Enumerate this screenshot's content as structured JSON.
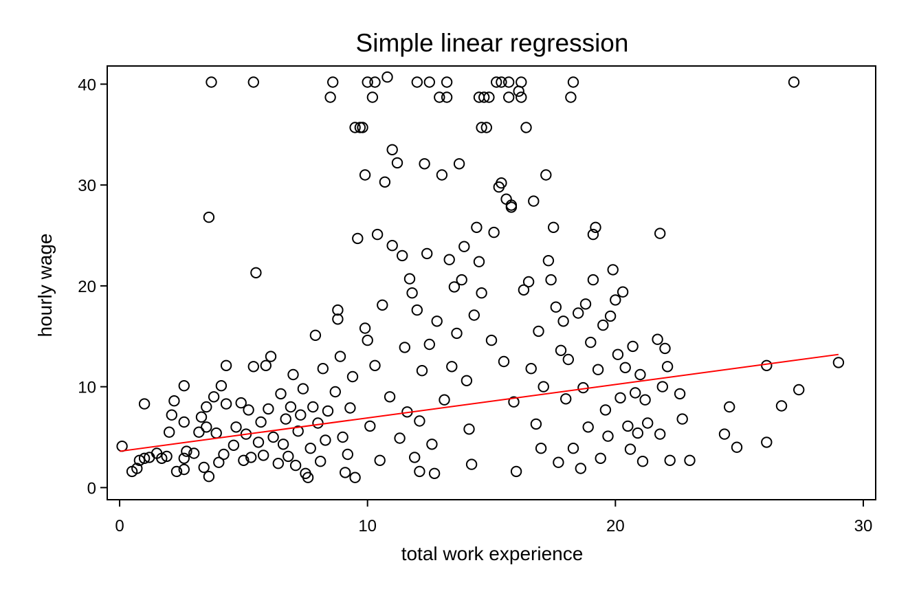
{
  "chart_data": {
    "type": "scatter",
    "title": "Simple linear regression",
    "xlabel": "total work experience",
    "ylabel": "hourly wage",
    "xlim": [
      -0.5,
      30.5
    ],
    "ylim": [
      -1.2,
      41.8
    ],
    "xticks": [
      0,
      10,
      20,
      30
    ],
    "yticks": [
      0,
      10,
      20,
      30,
      40
    ],
    "grid": false,
    "legend": "none",
    "marker_color": "#000000",
    "fit_color": "#ff0000",
    "series": [
      {
        "name": "",
        "marker": "hollow-circle",
        "points": [
          [
            0.1,
            4.1
          ],
          [
            0.5,
            1.6
          ],
          [
            0.7,
            1.9
          ],
          [
            0.8,
            2.7
          ],
          [
            1.0,
            2.9
          ],
          [
            1.2,
            3.0
          ],
          [
            1.0,
            8.3
          ],
          [
            1.5,
            3.4
          ],
          [
            1.7,
            2.9
          ],
          [
            1.9,
            3.1
          ],
          [
            2.0,
            5.5
          ],
          [
            2.1,
            7.2
          ],
          [
            2.2,
            8.6
          ],
          [
            2.3,
            1.6
          ],
          [
            2.6,
            1.8
          ],
          [
            2.6,
            2.9
          ],
          [
            2.7,
            3.6
          ],
          [
            2.6,
            6.5
          ],
          [
            2.6,
            10.1
          ],
          [
            3.0,
            3.4
          ],
          [
            3.2,
            5.5
          ],
          [
            3.4,
            2.0
          ],
          [
            3.3,
            7.0
          ],
          [
            3.5,
            6.0
          ],
          [
            3.5,
            8.0
          ],
          [
            3.6,
            1.1
          ],
          [
            3.6,
            26.8
          ],
          [
            3.7,
            40.2
          ],
          [
            3.8,
            9.0
          ],
          [
            3.9,
            5.4
          ],
          [
            4.0,
            2.5
          ],
          [
            4.1,
            10.1
          ],
          [
            4.2,
            3.3
          ],
          [
            4.3,
            8.3
          ],
          [
            4.3,
            12.1
          ],
          [
            4.6,
            4.2
          ],
          [
            4.7,
            6.0
          ],
          [
            4.9,
            8.4
          ],
          [
            5.0,
            2.7
          ],
          [
            5.1,
            5.3
          ],
          [
            5.2,
            7.7
          ],
          [
            5.3,
            3.0
          ],
          [
            5.4,
            12.0
          ],
          [
            5.4,
            40.2
          ],
          [
            5.5,
            21.3
          ],
          [
            5.6,
            4.5
          ],
          [
            5.7,
            6.5
          ],
          [
            5.8,
            3.2
          ],
          [
            5.9,
            12.1
          ],
          [
            6.0,
            7.8
          ],
          [
            6.1,
            13.0
          ],
          [
            6.2,
            5.0
          ],
          [
            6.4,
            2.4
          ],
          [
            6.5,
            9.3
          ],
          [
            6.6,
            4.3
          ],
          [
            6.7,
            6.8
          ],
          [
            6.8,
            3.1
          ],
          [
            6.9,
            8.0
          ],
          [
            7.0,
            11.2
          ],
          [
            7.1,
            2.2
          ],
          [
            7.2,
            5.6
          ],
          [
            7.3,
            7.2
          ],
          [
            7.4,
            9.8
          ],
          [
            7.5,
            1.4
          ],
          [
            7.6,
            1.0
          ],
          [
            7.7,
            3.9
          ],
          [
            7.8,
            8.0
          ],
          [
            7.9,
            15.1
          ],
          [
            8.0,
            6.4
          ],
          [
            8.1,
            2.6
          ],
          [
            8.2,
            11.8
          ],
          [
            8.3,
            4.7
          ],
          [
            8.4,
            7.6
          ],
          [
            8.5,
            38.7
          ],
          [
            8.6,
            40.2
          ],
          [
            8.7,
            9.5
          ],
          [
            8.8,
            17.6
          ],
          [
            8.8,
            16.7
          ],
          [
            8.9,
            13.0
          ],
          [
            9.0,
            5.0
          ],
          [
            9.1,
            1.5
          ],
          [
            9.2,
            3.3
          ],
          [
            9.3,
            7.9
          ],
          [
            9.4,
            11.0
          ],
          [
            9.5,
            1.0
          ],
          [
            9.5,
            35.7
          ],
          [
            9.6,
            24.7
          ],
          [
            9.7,
            35.7
          ],
          [
            9.8,
            35.7
          ],
          [
            9.9,
            31.0
          ],
          [
            9.9,
            15.8
          ],
          [
            10.0,
            14.6
          ],
          [
            10.0,
            40.2
          ],
          [
            10.1,
            6.1
          ],
          [
            10.2,
            38.7
          ],
          [
            10.3,
            40.2
          ],
          [
            10.3,
            12.1
          ],
          [
            10.4,
            25.1
          ],
          [
            10.5,
            2.7
          ],
          [
            10.6,
            18.1
          ],
          [
            10.7,
            30.3
          ],
          [
            10.8,
            40.7
          ],
          [
            10.9,
            9.0
          ],
          [
            11.0,
            24.0
          ],
          [
            11.0,
            33.5
          ],
          [
            11.2,
            32.2
          ],
          [
            11.3,
            4.9
          ],
          [
            11.4,
            23.0
          ],
          [
            11.5,
            13.9
          ],
          [
            11.6,
            7.5
          ],
          [
            11.7,
            20.7
          ],
          [
            11.8,
            19.3
          ],
          [
            11.9,
            3.0
          ],
          [
            12.0,
            40.2
          ],
          [
            12.0,
            17.6
          ],
          [
            12.1,
            6.6
          ],
          [
            12.1,
            1.6
          ],
          [
            12.2,
            11.6
          ],
          [
            12.3,
            32.1
          ],
          [
            12.4,
            23.2
          ],
          [
            12.5,
            40.2
          ],
          [
            12.5,
            14.2
          ],
          [
            12.6,
            4.3
          ],
          [
            12.7,
            1.4
          ],
          [
            12.8,
            16.5
          ],
          [
            12.9,
            38.7
          ],
          [
            13.0,
            31.0
          ],
          [
            13.1,
            8.7
          ],
          [
            13.2,
            38.7
          ],
          [
            13.2,
            40.2
          ],
          [
            13.3,
            22.6
          ],
          [
            13.4,
            12.0
          ],
          [
            13.5,
            19.9
          ],
          [
            13.6,
            15.3
          ],
          [
            13.7,
            32.1
          ],
          [
            13.8,
            20.6
          ],
          [
            13.9,
            23.9
          ],
          [
            14.0,
            10.6
          ],
          [
            14.1,
            5.8
          ],
          [
            14.2,
            2.3
          ],
          [
            14.3,
            17.1
          ],
          [
            14.4,
            25.8
          ],
          [
            14.5,
            22.4
          ],
          [
            14.5,
            38.7
          ],
          [
            14.6,
            35.7
          ],
          [
            14.6,
            19.3
          ],
          [
            14.7,
            38.7
          ],
          [
            14.8,
            35.7
          ],
          [
            14.9,
            38.7
          ],
          [
            15.0,
            14.6
          ],
          [
            15.1,
            25.3
          ],
          [
            15.2,
            40.2
          ],
          [
            15.3,
            29.8
          ],
          [
            15.4,
            30.2
          ],
          [
            15.4,
            40.2
          ],
          [
            15.5,
            12.5
          ],
          [
            15.6,
            28.6
          ],
          [
            15.7,
            38.7
          ],
          [
            15.7,
            40.2
          ],
          [
            15.8,
            28.0
          ],
          [
            15.8,
            27.8
          ],
          [
            15.9,
            8.5
          ],
          [
            16.0,
            1.6
          ],
          [
            16.1,
            39.3
          ],
          [
            16.2,
            38.7
          ],
          [
            16.2,
            40.2
          ],
          [
            16.3,
            19.6
          ],
          [
            16.4,
            35.7
          ],
          [
            16.5,
            20.4
          ],
          [
            16.6,
            11.8
          ],
          [
            16.7,
            28.4
          ],
          [
            16.8,
            6.3
          ],
          [
            16.9,
            15.5
          ],
          [
            17.0,
            3.9
          ],
          [
            17.1,
            10.0
          ],
          [
            17.2,
            31.0
          ],
          [
            17.3,
            22.5
          ],
          [
            17.4,
            20.6
          ],
          [
            17.5,
            25.8
          ],
          [
            17.6,
            17.9
          ],
          [
            17.7,
            2.5
          ],
          [
            17.8,
            13.6
          ],
          [
            17.9,
            16.5
          ],
          [
            18.0,
            8.8
          ],
          [
            18.1,
            12.7
          ],
          [
            18.2,
            38.7
          ],
          [
            18.3,
            40.2
          ],
          [
            18.3,
            3.9
          ],
          [
            18.5,
            17.3
          ],
          [
            18.6,
            1.9
          ],
          [
            18.7,
            9.9
          ],
          [
            18.8,
            18.2
          ],
          [
            18.9,
            6.0
          ],
          [
            19.0,
            14.4
          ],
          [
            19.1,
            25.1
          ],
          [
            19.1,
            20.6
          ],
          [
            19.2,
            25.8
          ],
          [
            19.3,
            11.7
          ],
          [
            19.4,
            2.9
          ],
          [
            19.5,
            16.1
          ],
          [
            19.6,
            7.7
          ],
          [
            19.7,
            5.1
          ],
          [
            19.8,
            17.0
          ],
          [
            19.9,
            21.6
          ],
          [
            20.0,
            18.6
          ],
          [
            20.1,
            13.2
          ],
          [
            20.2,
            8.9
          ],
          [
            20.3,
            19.4
          ],
          [
            20.4,
            11.9
          ],
          [
            20.5,
            6.1
          ],
          [
            20.6,
            3.8
          ],
          [
            20.7,
            14.0
          ],
          [
            20.8,
            9.4
          ],
          [
            20.9,
            5.4
          ],
          [
            21.0,
            11.2
          ],
          [
            21.1,
            2.6
          ],
          [
            21.2,
            8.7
          ],
          [
            21.3,
            6.4
          ],
          [
            21.7,
            14.7
          ],
          [
            21.8,
            5.3
          ],
          [
            21.8,
            25.2
          ],
          [
            21.9,
            10.0
          ],
          [
            22.0,
            13.8
          ],
          [
            22.1,
            12.0
          ],
          [
            22.2,
            2.7
          ],
          [
            22.6,
            9.3
          ],
          [
            22.7,
            6.8
          ],
          [
            23.0,
            2.7
          ],
          [
            24.4,
            5.3
          ],
          [
            24.6,
            8.0
          ],
          [
            24.9,
            4.0
          ],
          [
            26.1,
            12.1
          ],
          [
            26.1,
            4.5
          ],
          [
            26.7,
            8.1
          ],
          [
            27.2,
            40.2
          ],
          [
            27.4,
            9.7
          ],
          [
            29.0,
            12.4
          ]
        ]
      }
    ],
    "fit": {
      "type": "line",
      "x": [
        0.0,
        29.0
      ],
      "y": [
        3.6,
        13.2
      ]
    }
  }
}
